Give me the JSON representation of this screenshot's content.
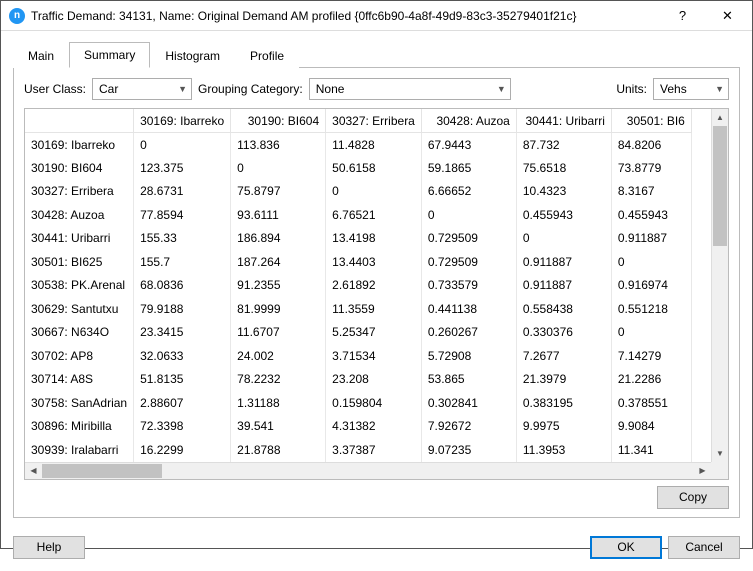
{
  "window": {
    "title": "Traffic Demand: 34131, Name: Original Demand AM profiled  {0ffc6b90-4a8f-49d9-83c3-35279401f21c}",
    "icon_letter": "n"
  },
  "tabs": {
    "main": "Main",
    "summary": "Summary",
    "histogram": "Histogram",
    "profile": "Profile",
    "active": "summary"
  },
  "controls": {
    "user_class_label": "User Class:",
    "user_class_value": "Car",
    "grouping_label": "Grouping Category:",
    "grouping_value": "None",
    "units_label": "Units:",
    "units_value": "Vehs"
  },
  "table": {
    "col_widths": {
      "rowhead": 108,
      "data": 95,
      "last": 80
    },
    "row_height": 23.5,
    "columns": [
      "30169: Ibarreko",
      "30190: BI604",
      "30327: Erribera",
      "30428: Auzoa",
      "30441: Uribarri",
      "30501: BI6"
    ],
    "rows": [
      {
        "head": "30169: Ibarreko",
        "cells": [
          "0",
          "113.836",
          "11.4828",
          "67.9443",
          "87.732",
          "84.8206"
        ]
      },
      {
        "head": "30190: BI604",
        "cells": [
          "123.375",
          "0",
          "50.6158",
          "59.1865",
          "75.6518",
          "73.8779"
        ]
      },
      {
        "head": "30327: Erribera",
        "cells": [
          "28.6731",
          "75.8797",
          "0",
          "6.66652",
          "10.4323",
          "8.3167"
        ]
      },
      {
        "head": "30428: Auzoa",
        "cells": [
          "77.8594",
          "93.6111",
          "6.76521",
          "0",
          "0.455943",
          "0.455943"
        ]
      },
      {
        "head": "30441: Uribarri",
        "cells": [
          "155.33",
          "186.894",
          "13.4198",
          "0.729509",
          "0",
          "0.911887"
        ]
      },
      {
        "head": "30501: BI625",
        "cells": [
          "155.7",
          "187.264",
          "13.4403",
          "0.729509",
          "0.911887",
          "0"
        ]
      },
      {
        "head": "30538: PK.Arenal",
        "cells": [
          "68.0836",
          "91.2355",
          "2.61892",
          "0.733579",
          "0.911887",
          "0.916974"
        ]
      },
      {
        "head": "30629: Santutxu",
        "cells": [
          "79.9188",
          "81.9999",
          "11.3559",
          "0.441138",
          "0.558438",
          "0.551218"
        ]
      },
      {
        "head": "30667: N634O",
        "cells": [
          "23.3415",
          "11.6707",
          "5.25347",
          "0.260267",
          "0.330376",
          "0"
        ]
      },
      {
        "head": "30702: AP8",
        "cells": [
          "32.0633",
          "24.002",
          "3.71534",
          "5.72908",
          "7.2677",
          "7.14279"
        ]
      },
      {
        "head": "30714: A8S",
        "cells": [
          "51.8135",
          "78.2232",
          "23.208",
          "53.865",
          "21.3979",
          "21.2286"
        ]
      },
      {
        "head": "30758: SanAdrian",
        "cells": [
          "2.88607",
          "1.31188",
          "0.159804",
          "0.302841",
          "0.383195",
          "0.378551"
        ]
      },
      {
        "head": "30896: Miribilla",
        "cells": [
          "72.3398",
          "39.541",
          "4.31382",
          "7.92672",
          "9.9975",
          "9.9084"
        ]
      },
      {
        "head": "30939: Iralabarri",
        "cells": [
          "16.2299",
          "21.8788",
          "3.37387",
          "9.07235",
          "11.3953",
          "11.341"
        ]
      }
    ]
  },
  "buttons": {
    "copy": "Copy",
    "help": "Help",
    "ok": "OK",
    "cancel": "Cancel"
  },
  "colors": {
    "window_border": "#555",
    "tab_border": "#bbb",
    "grid_border": "#e4e4e4",
    "scroll_bg": "#f0f0f0",
    "scroll_thumb": "#c2c2c2",
    "btn_bg": "#e1e1e1",
    "btn_border": "#adadad",
    "primary": "#0078d7"
  }
}
